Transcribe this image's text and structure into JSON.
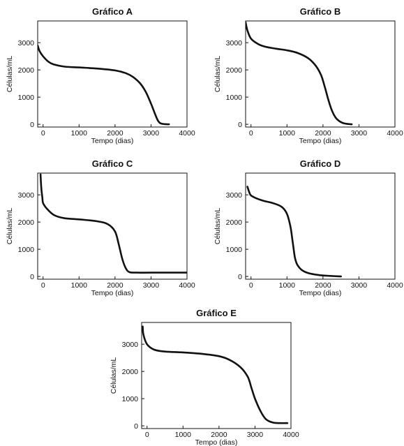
{
  "chart_data": [
    {
      "type": "line",
      "title": "Gráfico A",
      "xlabel": "Tempo (dias)",
      "ylabel": "Células/mL",
      "xlim": [
        -150,
        4000
      ],
      "ylim": [
        -100,
        3800
      ],
      "xticks": [
        0,
        1000,
        2000,
        3000,
        4000
      ],
      "yticks": [
        0,
        1000,
        2000,
        3000
      ],
      "xtick_labels": [
        "0",
        "1000",
        "2000",
        "3000",
        "4000"
      ],
      "ytick_labels": [
        "0",
        "1000",
        "2000",
        "3000"
      ],
      "grid": false,
      "series": [
        {
          "x": [
            -150,
            -100,
            0,
            150,
            300,
            600,
            1000,
            1500,
            2000,
            2300,
            2500,
            2700,
            2850,
            3000,
            3100,
            3200,
            3300,
            3500
          ],
          "y": [
            2900,
            2700,
            2500,
            2300,
            2200,
            2120,
            2090,
            2050,
            1980,
            1880,
            1740,
            1500,
            1200,
            760,
            420,
            120,
            20,
            0
          ]
        }
      ]
    },
    {
      "type": "line",
      "title": "Gráfico B",
      "xlabel": "Tempo (dias)",
      "ylabel": "Células/mL",
      "xlim": [
        -150,
        4000
      ],
      "ylim": [
        -100,
        3800
      ],
      "xticks": [
        0,
        1000,
        2000,
        3000,
        4000
      ],
      "yticks": [
        0,
        1000,
        2000,
        3000
      ],
      "xtick_labels": [
        "0",
        "1000",
        "2000",
        "3000",
        "4000"
      ],
      "ytick_labels": [
        "0",
        "1000",
        "2000",
        "3000"
      ],
      "grid": false,
      "series": [
        {
          "x": [
            -150,
            -100,
            0,
            200,
            400,
            700,
            1000,
            1300,
            1600,
            1800,
            1950,
            2050,
            2150,
            2250,
            2350,
            2450,
            2600,
            2800
          ],
          "y": [
            3750,
            3450,
            3150,
            2950,
            2850,
            2780,
            2720,
            2620,
            2420,
            2150,
            1800,
            1380,
            900,
            500,
            250,
            120,
            30,
            0
          ]
        }
      ]
    },
    {
      "type": "line",
      "title": "Gráfico C",
      "xlabel": "Tempo (dias)",
      "ylabel": "Células/mL",
      "xlim": [
        -150,
        4000
      ],
      "ylim": [
        -100,
        3800
      ],
      "xticks": [
        0,
        1000,
        2000,
        3000,
        4000
      ],
      "yticks": [
        0,
        1000,
        2000,
        3000
      ],
      "xtick_labels": [
        "0",
        "1000",
        "2000",
        "3000",
        "4000"
      ],
      "ytick_labels": [
        "0",
        "1000",
        "2000",
        "3000"
      ],
      "grid": false,
      "series": [
        {
          "x": [
            -70,
            -50,
            -20,
            0,
            100,
            300,
            600,
            1000,
            1500,
            1800,
            2000,
            2100,
            2200,
            2300,
            2400,
            2600,
            3000,
            4000
          ],
          "y": [
            3750,
            3250,
            2900,
            2700,
            2500,
            2260,
            2140,
            2100,
            2030,
            1920,
            1650,
            1200,
            650,
            300,
            160,
            140,
            140,
            140
          ]
        }
      ]
    },
    {
      "type": "line",
      "title": "Gráfico D",
      "xlabel": "Tempo (dias)",
      "ylabel": "Células/mL",
      "xlim": [
        -150,
        4000
      ],
      "ylim": [
        -100,
        3800
      ],
      "xticks": [
        0,
        1000,
        2000,
        3000,
        4000
      ],
      "yticks": [
        0,
        1000,
        2000,
        3000
      ],
      "xtick_labels": [
        "0",
        "1000",
        "2000",
        "3000",
        "4000"
      ],
      "ytick_labels": [
        "0",
        "1000",
        "2000",
        "3000"
      ],
      "grid": false,
      "series": [
        {
          "x": [
            -100,
            -50,
            0,
            150,
            350,
            600,
            850,
            1000,
            1100,
            1160,
            1220,
            1280,
            1400,
            1600,
            1900,
            2200,
            2500
          ],
          "y": [
            3300,
            3100,
            2980,
            2870,
            2780,
            2700,
            2560,
            2300,
            1800,
            1250,
            700,
            450,
            250,
            120,
            50,
            20,
            0
          ]
        }
      ]
    },
    {
      "type": "line",
      "title": "Gráfico E",
      "xlabel": "Tempo (dias)",
      "ylabel": "Células/mL",
      "xlim": [
        -150,
        4000
      ],
      "ylim": [
        -100,
        3800
      ],
      "xticks": [
        0,
        1000,
        2000,
        3000,
        4000
      ],
      "yticks": [
        0,
        1000,
        2000,
        3000
      ],
      "xtick_labels": [
        "0",
        "1000",
        "2000",
        "3000",
        "4000"
      ],
      "ytick_labels": [
        "0",
        "1000",
        "2000",
        "3000"
      ],
      "grid": false,
      "series": [
        {
          "x": [
            -120,
            -100,
            0,
            200,
            500,
            1000,
            1500,
            2000,
            2300,
            2600,
            2800,
            2900,
            3000,
            3150,
            3300,
            3500,
            3700,
            3900
          ],
          "y": [
            3650,
            3350,
            3000,
            2800,
            2730,
            2700,
            2650,
            2560,
            2420,
            2150,
            1800,
            1400,
            1000,
            550,
            250,
            120,
            100,
            100
          ]
        }
      ]
    }
  ]
}
